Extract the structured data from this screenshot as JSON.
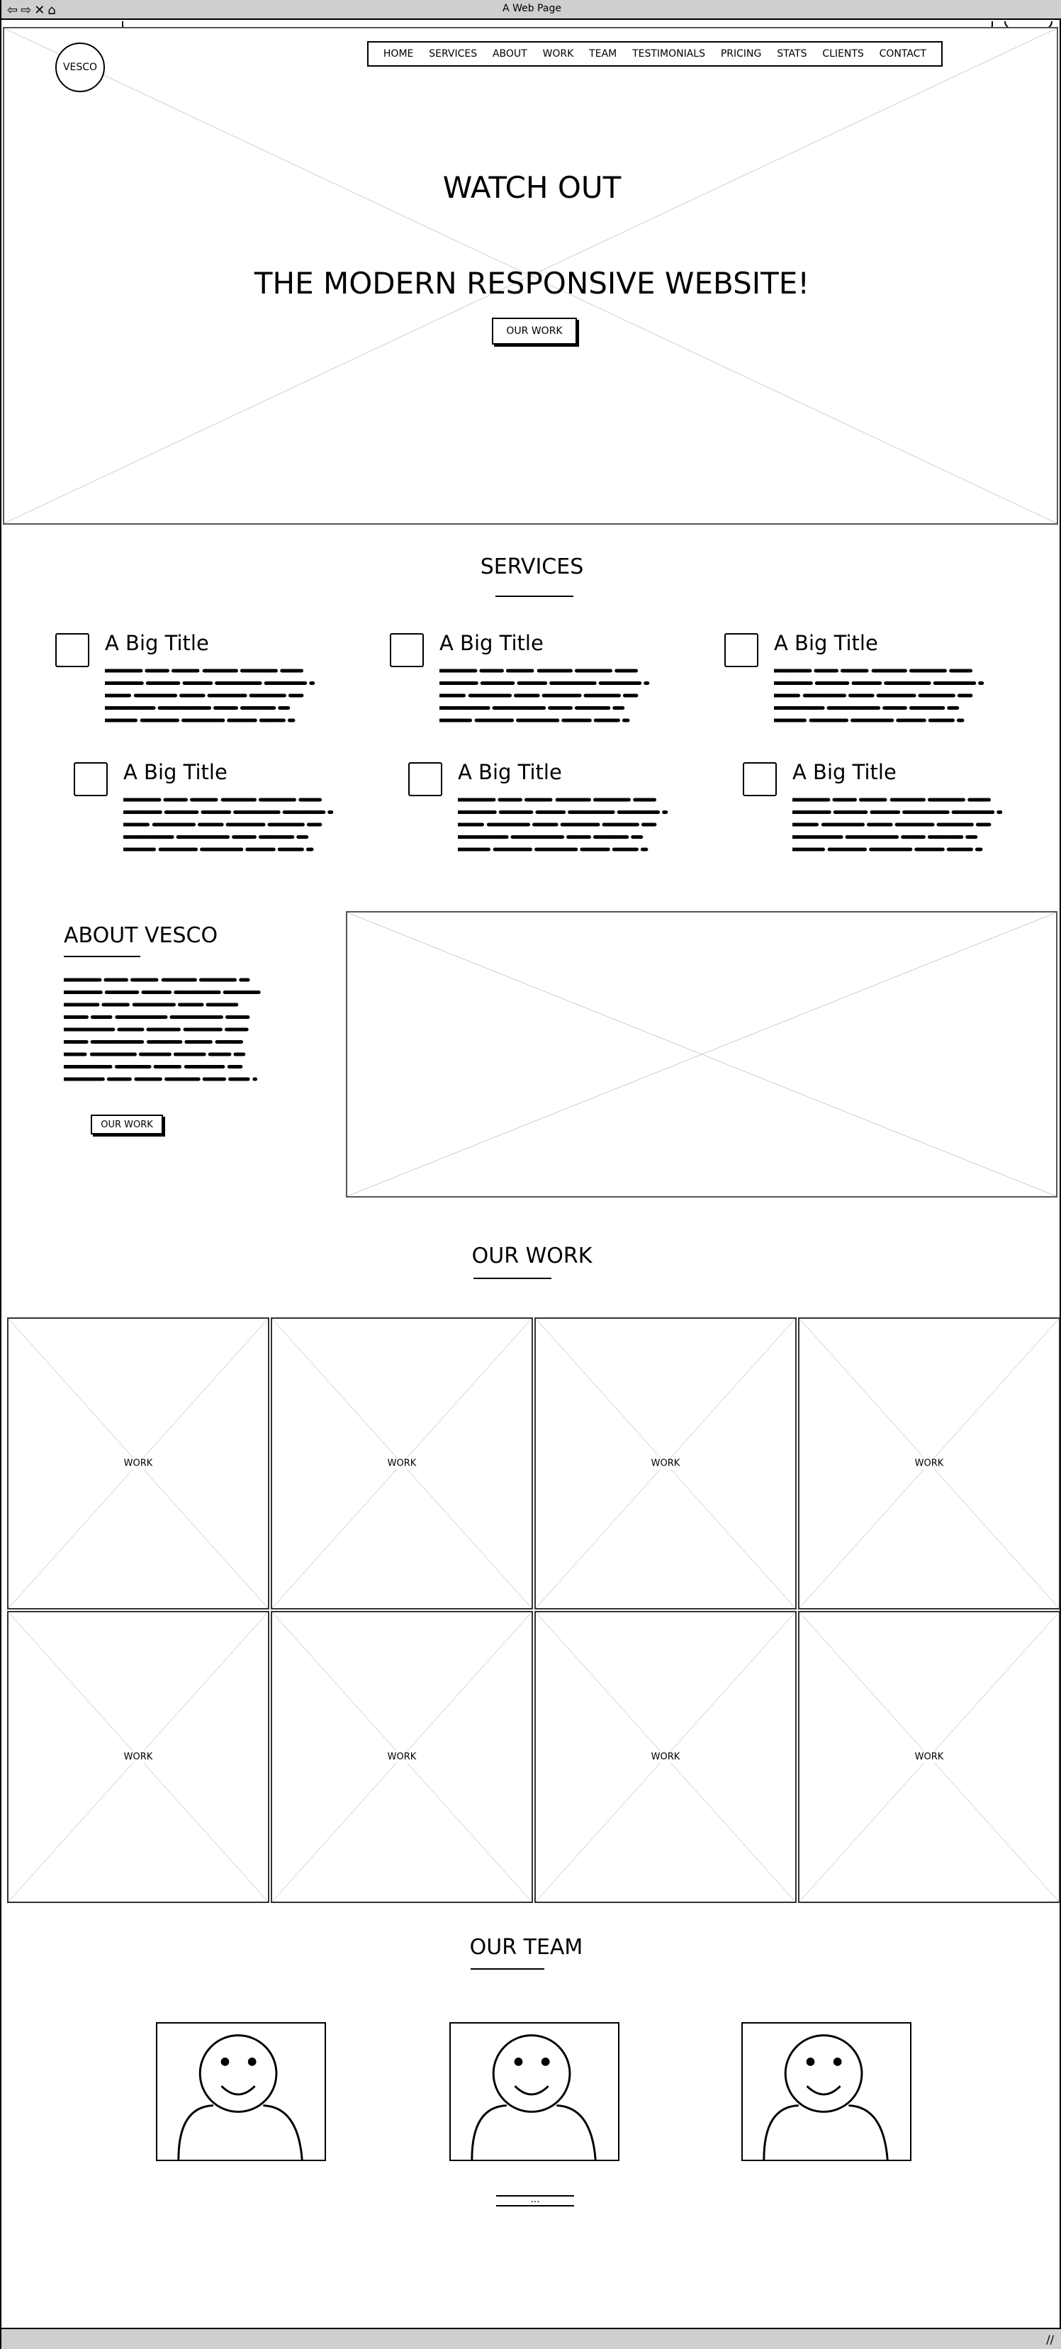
{
  "window": {
    "title": "A Web Page"
  },
  "logo": {
    "label": "VESCO"
  },
  "nav": {
    "items": [
      "HOME",
      "SERVICES",
      "ABOUT",
      "WORK",
      "TEAM",
      "TESTIMONIALS",
      "PRICING",
      "STATS",
      "CLIENTS",
      "CONTACT"
    ]
  },
  "hero": {
    "headline": "WATCH OUT",
    "subheadline": "THE MODERN RESPONSIVE WEBSITE!",
    "button_label": "OUR WORK"
  },
  "services": {
    "title": "SERVICES",
    "items": [
      {
        "title": "A Big Title"
      },
      {
        "title": "A Big Title"
      },
      {
        "title": "A Big Title"
      },
      {
        "title": "A Big Title"
      },
      {
        "title": "A Big Title"
      },
      {
        "title": "A Big Title"
      }
    ]
  },
  "about": {
    "title": "ABOUT VESCO",
    "button_label": "OUR WORK"
  },
  "work": {
    "title": "OUR WORK",
    "tiles": [
      "WORK",
      "WORK",
      "WORK",
      "WORK",
      "WORK",
      "WORK",
      "WORK",
      "WORK"
    ]
  },
  "team": {
    "title": "OUR TEAM",
    "members": 3,
    "pager_label": "..."
  }
}
